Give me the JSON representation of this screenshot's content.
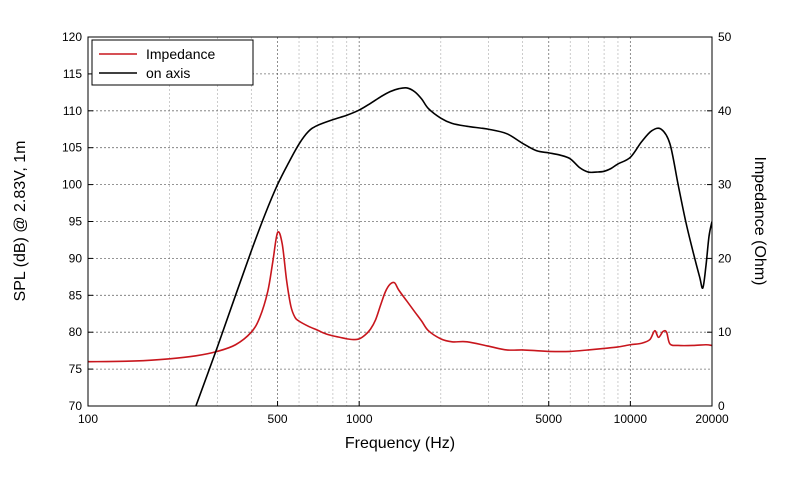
{
  "chart_data": {
    "type": "line",
    "xlabel": "Frequency (Hz)",
    "ylabel": "SPL (dB) @ 2.83V, 1m",
    "y2label": "Impedance (Ohm)",
    "xscale": "log",
    "xlim": [
      100,
      20000
    ],
    "ylim": [
      70,
      120
    ],
    "y2lim": [
      0,
      50
    ],
    "grid": true,
    "legend_position": "top-left",
    "x_tick_labels": [
      "100",
      "500",
      "1000",
      "5000",
      "10000",
      "20000"
    ],
    "x_tick_values": [
      100,
      500,
      1000,
      5000,
      10000,
      20000
    ],
    "x_minor_ticks": [
      200,
      300,
      400,
      600,
      700,
      800,
      900,
      2000,
      3000,
      4000,
      6000,
      7000,
      8000,
      9000
    ],
    "y_ticks": [
      70,
      75,
      80,
      85,
      90,
      95,
      100,
      105,
      110,
      115,
      120
    ],
    "y2_ticks": [
      0,
      10,
      20,
      30,
      40,
      50
    ],
    "series": [
      {
        "name": "Impedance",
        "axis": "right",
        "color": "#c8161d",
        "x": [
          100,
          150,
          200,
          250,
          300,
          350,
          400,
          430,
          460,
          480,
          500,
          520,
          540,
          560,
          580,
          600,
          650,
          700,
          750,
          800,
          850,
          900,
          950,
          1000,
          1050,
          1100,
          1150,
          1200,
          1250,
          1300,
          1350,
          1400,
          1500,
          1600,
          1700,
          1800,
          2000,
          2200,
          2500,
          3000,
          3500,
          4000,
          4500,
          5000,
          6000,
          7000,
          8000,
          9000,
          10000,
          11000,
          11800,
          12300,
          12700,
          13200,
          13600,
          14000,
          15000,
          17000,
          19000,
          20000
        ],
        "y": [
          6.0,
          6.1,
          6.4,
          6.8,
          7.4,
          8.3,
          10.0,
          12.0,
          15.5,
          19.5,
          23.5,
          22.0,
          17.0,
          13.5,
          12.0,
          11.5,
          10.8,
          10.3,
          9.8,
          9.5,
          9.3,
          9.1,
          9.0,
          9.1,
          9.6,
          10.4,
          11.7,
          13.7,
          15.5,
          16.5,
          16.7,
          15.7,
          14.2,
          12.8,
          11.5,
          10.2,
          9.1,
          8.7,
          8.7,
          8.1,
          7.6,
          7.6,
          7.5,
          7.4,
          7.4,
          7.6,
          7.8,
          8.0,
          8.3,
          8.5,
          9.0,
          10.2,
          9.3,
          10.1,
          10.0,
          8.4,
          8.2,
          8.2,
          8.3,
          8.2
        ]
      },
      {
        "name": "on axis",
        "axis": "left",
        "color": "#000000",
        "x": [
          250,
          300,
          350,
          400,
          450,
          500,
          550,
          600,
          650,
          700,
          800,
          900,
          1000,
          1100,
          1200,
          1300,
          1400,
          1500,
          1600,
          1700,
          1800,
          2000,
          2200,
          2500,
          3000,
          3500,
          4000,
          4500,
          5000,
          5500,
          6000,
          6500,
          7000,
          7500,
          8000,
          8500,
          9000,
          10000,
          11000,
          12000,
          13000,
          14000,
          15000,
          16000,
          17000,
          18000,
          18500,
          19000,
          19500,
          20000
        ],
        "y": [
          70,
          78,
          85,
          91,
          96,
          100,
          103,
          105.5,
          107.2,
          108,
          108.8,
          109.4,
          110.1,
          111,
          111.9,
          112.6,
          113,
          113.1,
          112.6,
          111.6,
          110.3,
          109,
          108.3,
          107.9,
          107.5,
          106.9,
          105.6,
          104.6,
          104.3,
          104.0,
          103.5,
          102.3,
          101.7,
          101.7,
          101.8,
          102.2,
          102.8,
          103.7,
          105.8,
          107.3,
          107.5,
          105.5,
          100,
          95,
          91,
          87.5,
          86,
          89,
          93,
          95
        ]
      }
    ]
  }
}
